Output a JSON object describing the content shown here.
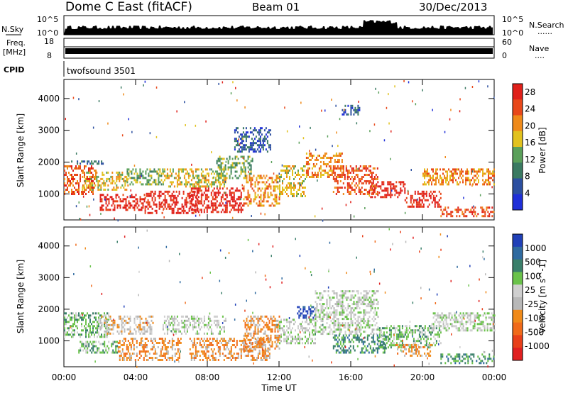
{
  "header": {
    "title": "Dome C East (fitACF)",
    "beam": "Beam 01",
    "date": "30/Dec/2013"
  },
  "top_panels": {
    "nsky_label": "N.Sky",
    "nsky_ticks": [
      "10^5",
      "10^0"
    ],
    "nsearch_label": "N.Search",
    "nsearch_dots": "......",
    "nsearch_ticks": [
      "10^5",
      "10^0"
    ],
    "freq_label": "Freq.",
    "freq_unit": "[MHz]",
    "freq_ticks": [
      "18",
      "8"
    ],
    "nave_label": "Nave",
    "nave_dots": "....",
    "nave_ticks": [
      "60",
      "0"
    ],
    "cpid_label": "CPID",
    "cpid_text": "twofsound 3501"
  },
  "colors": {
    "power_scale": [
      "#1f2fd8",
      "#2c4fa0",
      "#3a7a62",
      "#5aa05a",
      "#e2c21e",
      "#ef8a1a",
      "#e8481a",
      "#e0201a"
    ],
    "velocity_scale": [
      "#2040b8",
      "#2f6aa0",
      "#3a7f6a",
      "#6ac24a",
      "#cfcfcf",
      "#b8b8b8",
      "#f08a1a",
      "#f06a1a",
      "#e8401a",
      "#e02020"
    ]
  },
  "chart_data": [
    {
      "type": "heatmap",
      "title": "",
      "xlabel": "Time UT",
      "ylabel": "Slant Range [km]",
      "x_ticks": [
        "00:00",
        "04:00",
        "08:00",
        "12:00",
        "16:00",
        "20:00",
        "00:00"
      ],
      "y_ticks": [
        "1000",
        "2000",
        "3000",
        "4000"
      ],
      "x_range_hours": [
        0,
        24
      ],
      "y_range_km": [
        180,
        4600
      ],
      "colorbar_label": "Power [dB]",
      "colorbar_ticks": [
        "4",
        "8",
        "12",
        "16",
        "20",
        "24",
        "28"
      ],
      "colorbar_range": [
        0,
        30
      ],
      "regions": [
        {
          "t0": 0.0,
          "t1": 1.8,
          "r0": 1000,
          "r1": 1900,
          "level": 6
        },
        {
          "t0": 0.4,
          "t1": 2.2,
          "r0": 1950,
          "r1": 2050,
          "level": 2
        },
        {
          "t0": 1.0,
          "t1": 3.6,
          "r0": 1100,
          "r1": 1700,
          "level": 4
        },
        {
          "t0": 2.0,
          "t1": 4.5,
          "r0": 500,
          "r1": 1000,
          "level": 7
        },
        {
          "t0": 3.5,
          "t1": 5.5,
          "r0": 1300,
          "r1": 1800,
          "level": 3
        },
        {
          "t0": 4.5,
          "t1": 7.5,
          "r0": 400,
          "r1": 1100,
          "level": 7
        },
        {
          "t0": 5.5,
          "t1": 9.0,
          "r0": 1200,
          "r1": 1800,
          "level": 4
        },
        {
          "t0": 7.0,
          "t1": 10.0,
          "r0": 400,
          "r1": 1200,
          "level": 7
        },
        {
          "t0": 8.5,
          "t1": 10.5,
          "r0": 1500,
          "r1": 2200,
          "level": 3
        },
        {
          "t0": 9.5,
          "t1": 11.5,
          "r0": 2300,
          "r1": 3100,
          "level": 1
        },
        {
          "t0": 10.0,
          "t1": 12.0,
          "r0": 600,
          "r1": 1600,
          "level": 5
        },
        {
          "t0": 12.0,
          "t1": 13.5,
          "r0": 900,
          "r1": 1900,
          "level": 4
        },
        {
          "t0": 13.5,
          "t1": 15.5,
          "r0": 1500,
          "r1": 2300,
          "level": 5
        },
        {
          "t0": 15.0,
          "t1": 17.5,
          "r0": 1000,
          "r1": 1900,
          "level": 6
        },
        {
          "t0": 15.5,
          "t1": 16.5,
          "r0": 3500,
          "r1": 3800,
          "level": 1
        },
        {
          "t0": 17.0,
          "t1": 19.0,
          "r0": 900,
          "r1": 1400,
          "level": 7
        },
        {
          "t0": 19.0,
          "t1": 21.0,
          "r0": 600,
          "r1": 1100,
          "level": 7
        },
        {
          "t0": 20.0,
          "t1": 24.0,
          "r0": 1300,
          "r1": 1800,
          "level": 5
        },
        {
          "t0": 21.0,
          "t1": 24.0,
          "r0": 300,
          "r1": 600,
          "level": 6
        }
      ]
    },
    {
      "type": "heatmap",
      "title": "",
      "xlabel": "Time UT",
      "ylabel": "Slant Range [km]",
      "x_ticks": [
        "00:00",
        "04:00",
        "08:00",
        "12:00",
        "16:00",
        "20:00",
        "00:00"
      ],
      "y_ticks": [
        "1000",
        "2000",
        "3000",
        "4000"
      ],
      "x_range_hours": [
        0,
        24
      ],
      "y_range_km": [
        180,
        4600
      ],
      "colorbar_label": "Velocity [m s^-1]",
      "colorbar_ticks": [
        "1000",
        "500",
        "100",
        "25",
        "-25",
        "-100",
        "-500",
        "-1000"
      ],
      "regions": [
        {
          "t0": 0.0,
          "t1": 2.5,
          "r0": 1100,
          "r1": 1900,
          "level": 3
        },
        {
          "t0": 0.8,
          "t1": 3.0,
          "r0": 600,
          "r1": 1000,
          "level": 3
        },
        {
          "t0": 2.0,
          "t1": 5.0,
          "r0": 1200,
          "r1": 1800,
          "level": 5
        },
        {
          "t0": 3.0,
          "t1": 6.5,
          "r0": 400,
          "r1": 1100,
          "level": 6
        },
        {
          "t0": 5.5,
          "t1": 9.0,
          "r0": 1200,
          "r1": 1800,
          "level": 4
        },
        {
          "t0": 7.0,
          "t1": 11.5,
          "r0": 400,
          "r1": 1100,
          "level": 6
        },
        {
          "t0": 10.0,
          "t1": 12.0,
          "r0": 700,
          "r1": 1800,
          "level": 6
        },
        {
          "t0": 12.0,
          "t1": 14.0,
          "r0": 900,
          "r1": 1700,
          "level": 4
        },
        {
          "t0": 13.0,
          "t1": 14.0,
          "r0": 1700,
          "r1": 2100,
          "level": 0
        },
        {
          "t0": 14.0,
          "t1": 17.5,
          "r0": 1200,
          "r1": 2600,
          "level": 4
        },
        {
          "t0": 15.0,
          "t1": 18.0,
          "r0": 600,
          "r1": 1200,
          "level": 2
        },
        {
          "t0": 17.5,
          "t1": 21.0,
          "r0": 800,
          "r1": 1500,
          "level": 3
        },
        {
          "t0": 18.5,
          "t1": 20.5,
          "r0": 500,
          "r1": 900,
          "level": 6
        },
        {
          "t0": 20.5,
          "t1": 24.0,
          "r0": 1300,
          "r1": 1900,
          "level": 4
        },
        {
          "t0": 21.0,
          "t1": 24.0,
          "r0": 300,
          "r1": 600,
          "level": 2
        }
      ]
    }
  ],
  "axis_title": "Time UT"
}
